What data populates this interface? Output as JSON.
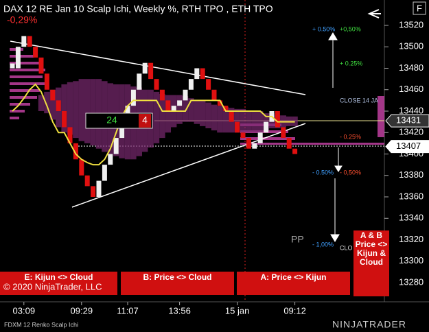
{
  "chart_data": {
    "type": "renko",
    "title": "DAX 12 RE Jan 10 Scalp Ichi, Weekly %, RTH TPO , ETH TPO",
    "subtitle": "-0,29%",
    "instrument_label": "FDXM 12 Renko Scalp Ichi",
    "copyright": "© 2020 NinjaTrader, LLC",
    "logo": "NINJATRADER",
    "corner_label": "F",
    "pivot_label": "PP",
    "categories": [
      null,
      null,
      "03:09",
      null,
      null,
      null,
      null,
      null,
      null,
      null,
      null,
      null,
      "09:29",
      null,
      null,
      null,
      null,
      null,
      null,
      null,
      "11:07",
      null,
      null,
      null,
      null,
      null,
      null,
      null,
      null,
      "13:56",
      null,
      null,
      null,
      null,
      null,
      null,
      null,
      null,
      null,
      "15 jan",
      null,
      null,
      null,
      null,
      null,
      null,
      null,
      null,
      null,
      "09:12"
    ],
    "values": [
      13480,
      13500,
      13510,
      13500,
      13490,
      13475,
      13460,
      13450,
      13440,
      13425,
      13410,
      13395,
      13380,
      13370,
      13360,
      13375,
      13390,
      13400,
      13415,
      13430,
      13445,
      13460,
      13475,
      13485,
      13470,
      13460,
      13450,
      13440,
      13445,
      13450,
      13460,
      13470,
      13480,
      13470,
      13460,
      13450,
      13445,
      13440,
      13430,
      13420,
      13415,
      13405,
      13410,
      13420,
      13430,
      13440,
      13425,
      13415,
      13405,
      13400
    ],
    "kijun": [
      13440,
      13445,
      13452,
      13460,
      13465,
      13458,
      13445,
      13430,
      13420,
      13420,
      13410,
      13400,
      13395,
      13392,
      13390,
      13390,
      13395,
      13405,
      13420,
      13435,
      13445,
      13450,
      13450,
      13450,
      13450,
      13450,
      13440,
      13440,
      13440,
      13440,
      13440,
      13450,
      13450,
      13450,
      13450,
      13450,
      13450,
      13440,
      13440,
      13440,
      13440,
      13440,
      13440,
      13440,
      13435,
      13435,
      13430,
      13430,
      13430,
      13430
    ],
    "cloud_upper": [
      null,
      null,
      null,
      null,
      null,
      13455,
      13458,
      13460,
      13462,
      13465,
      13467,
      13468,
      13470,
      13470,
      13470,
      13470,
      13468,
      13466,
      13465,
      13465,
      13465,
      13463,
      13462,
      13460,
      13460,
      13458,
      13456,
      13455,
      13455,
      13455,
      13454,
      13452,
      13450,
      13450,
      13448,
      13446,
      13445,
      13444,
      13443,
      13442,
      13442,
      13440,
      13440,
      13440,
      13438,
      13438,
      13436,
      13436,
      13435,
      13435
    ],
    "cloud_lower": [
      null,
      null,
      null,
      null,
      null,
      13440,
      13438,
      13432,
      13425,
      13420,
      13418,
      13415,
      13412,
      13410,
      13408,
      13405,
      13402,
      13400,
      13398,
      13396,
      13395,
      13395,
      13398,
      13402,
      13406,
      13410,
      13415,
      13420,
      13425,
      13428,
      13430,
      13430,
      13428,
      13426,
      13424,
      13422,
      13420,
      13420,
      13420,
      13420,
      13420,
      13420,
      13420,
      13420,
      13422,
      13424,
      13424,
      13425,
      13426,
      13426
    ],
    "ylim": [
      13270,
      13530
    ],
    "yticks": [
      13280,
      13300,
      13320,
      13340,
      13360,
      13380,
      13400,
      13420,
      13440,
      13460,
      13480,
      13500,
      13520
    ],
    "price_markers": [
      13431,
      13407
    ],
    "counter_box": [
      24,
      4
    ],
    "level_labels": [
      "+ 0.50%",
      "+0,50%",
      "+ 0.25%",
      "CLOSE 14 JA",
      "- 0.25%",
      "- 0.50%",
      "- 0,50%",
      "- 1,00%",
      "CLO"
    ],
    "buttons": [
      "E: Kijun <> Cloud",
      "B: Price <> Cloud",
      "A: Price <> Kijun"
    ],
    "side_button": [
      "A & B",
      "Price <>",
      "Kijun &",
      "Cloud"
    ]
  }
}
